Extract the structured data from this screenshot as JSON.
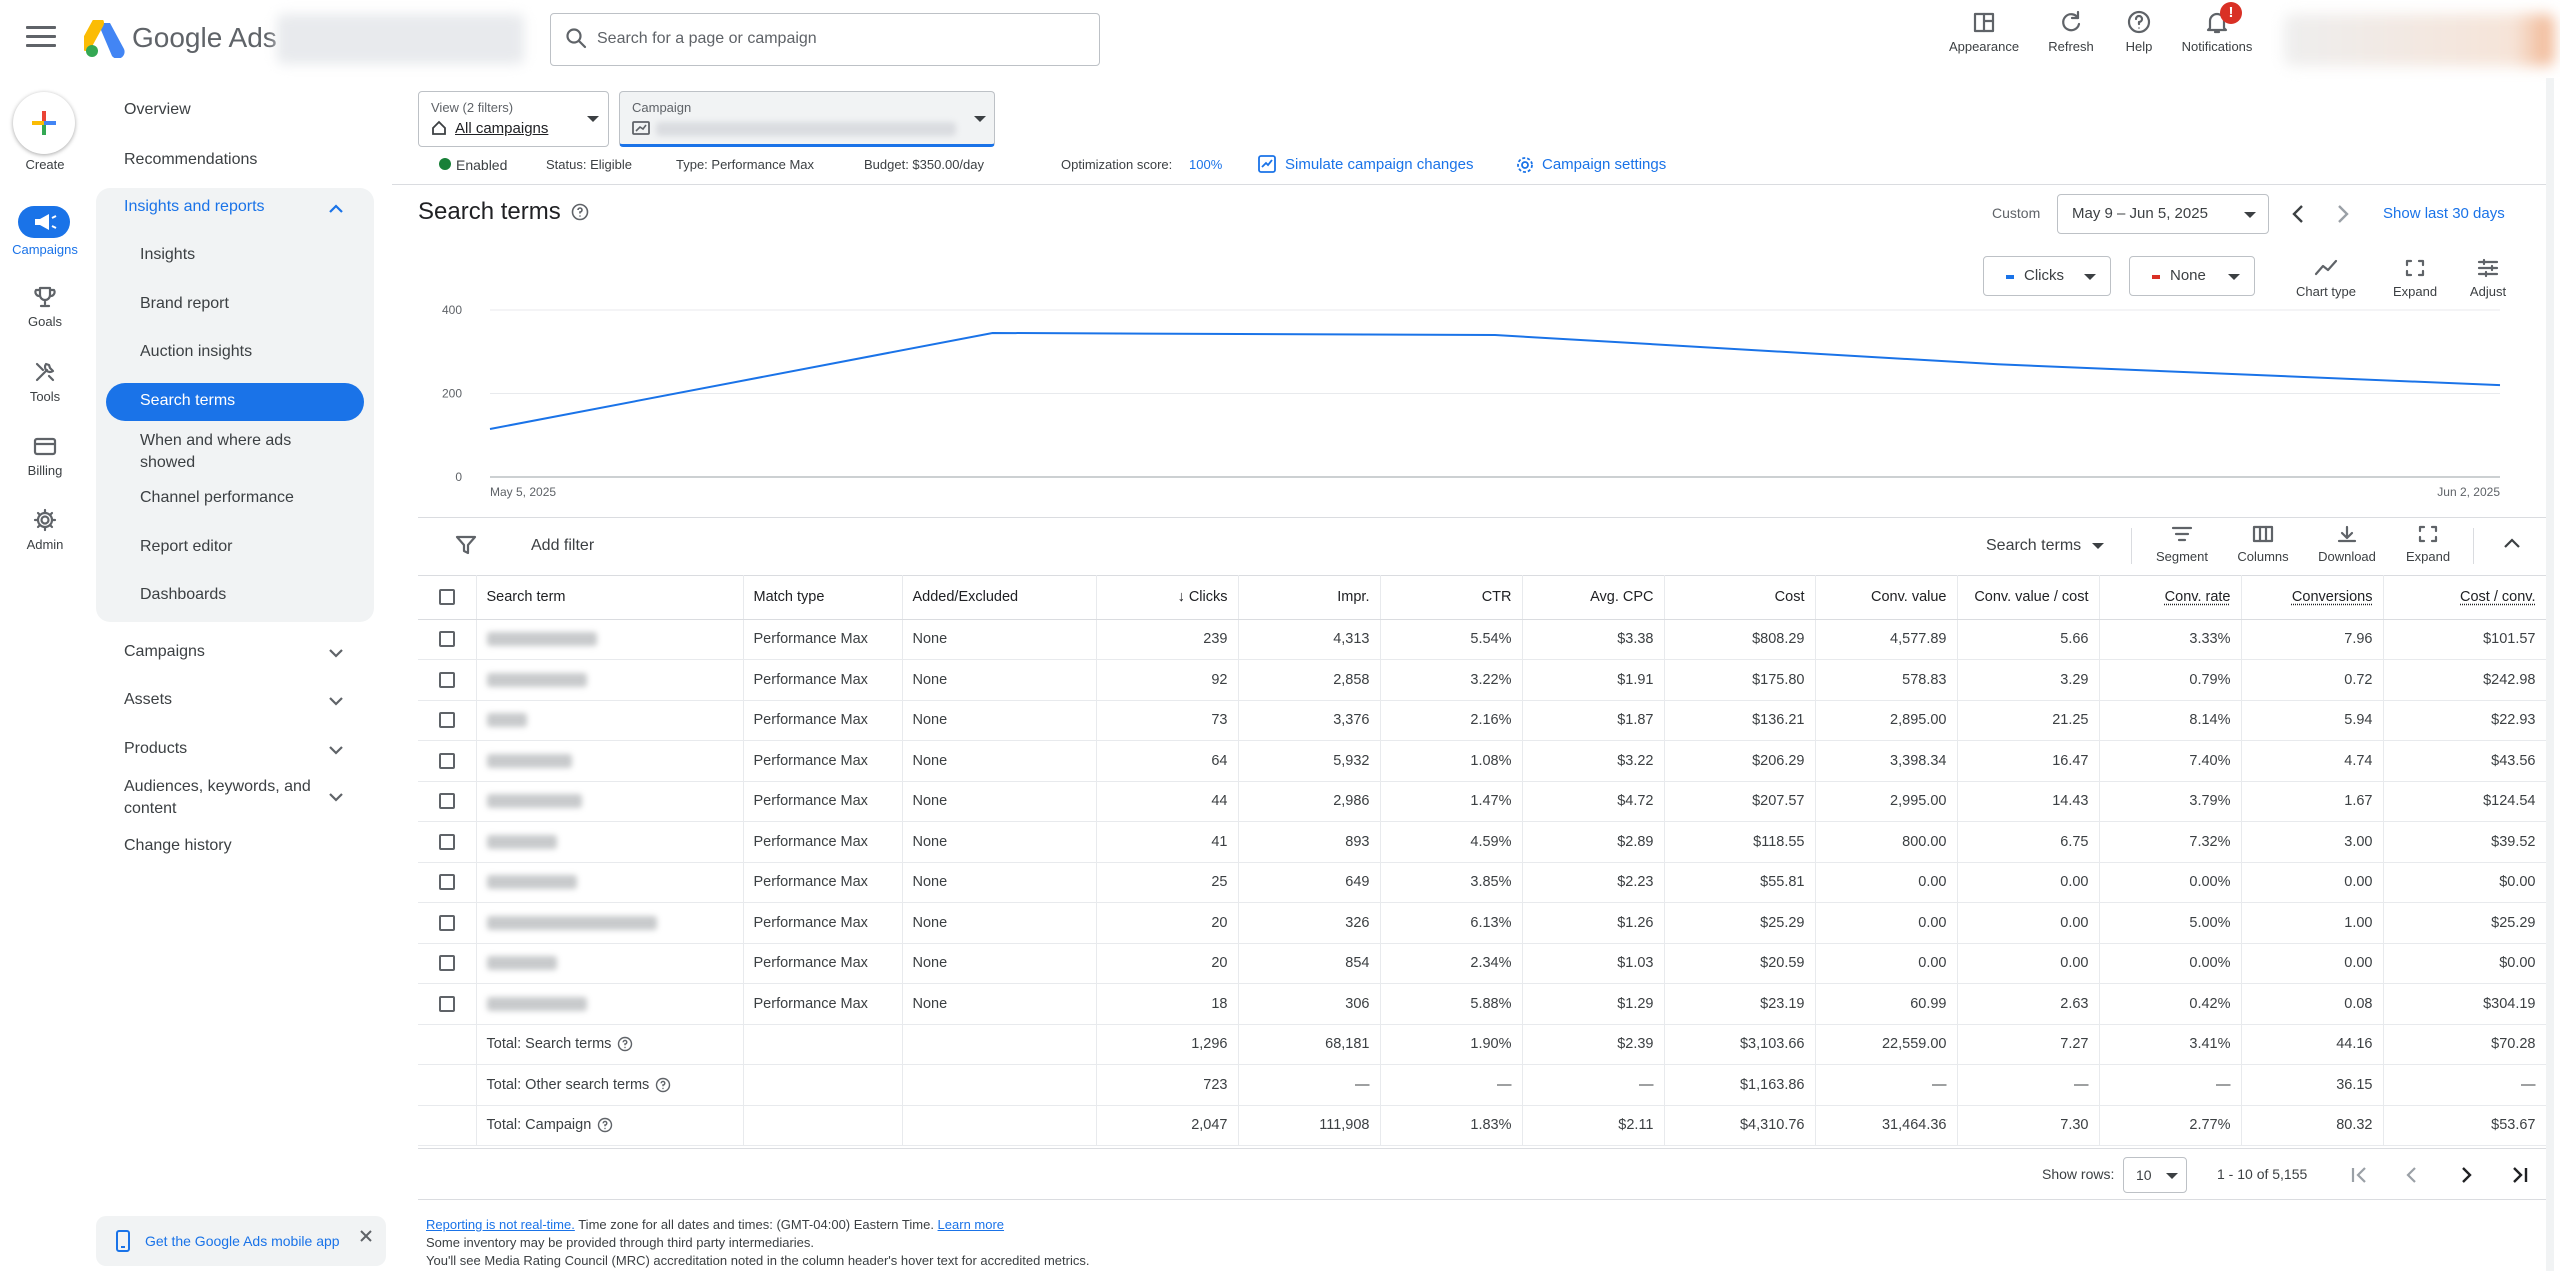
{
  "app": {
    "brand": "Google Ads"
  },
  "search": {
    "placeholder": "Search for a page or campaign"
  },
  "header_buttons": [
    {
      "label": "Appearance",
      "icon": "appearance-icon"
    },
    {
      "label": "Refresh",
      "icon": "refresh-icon"
    },
    {
      "label": "Help",
      "icon": "help-icon"
    },
    {
      "label": "Notifications",
      "icon": "bell-icon",
      "badge": "!"
    }
  ],
  "rail": {
    "create": "Create",
    "items": [
      {
        "label": "Campaigns",
        "icon": "campaigns-icon",
        "active": true
      },
      {
        "label": "Goals",
        "icon": "trophy-icon"
      },
      {
        "label": "Tools",
        "icon": "tools-icon"
      },
      {
        "label": "Billing",
        "icon": "billing-icon"
      },
      {
        "label": "Admin",
        "icon": "gear-icon"
      }
    ]
  },
  "nav": {
    "overview": "Overview",
    "recommendations": "Recommendations",
    "insights_reports": "Insights and reports",
    "sub": [
      "Insights",
      "Brand report",
      "Auction insights",
      "Search terms",
      "When and where ads showed",
      "Channel performance",
      "Report editor",
      "Dashboards"
    ],
    "active_sub": "Search terms",
    "campaigns": "Campaigns",
    "assets": "Assets",
    "products": "Products",
    "audiences": "Audiences, keywords, and content",
    "change_history": "Change history",
    "mobile_app": "Get the Google Ads mobile app"
  },
  "selectors": {
    "view_label": "View (2 filters)",
    "view_value": "All campaigns",
    "campaign_label": "Campaign"
  },
  "status_bar": {
    "enabled": "Enabled",
    "status": "Status: Eligible",
    "type": "Type: Performance Max",
    "budget": "Budget: $350.00/day",
    "opt_label": "Optimization score:",
    "opt_value": "100%",
    "simulate": "Simulate campaign changes",
    "settings": "Campaign settings"
  },
  "page": {
    "title": "Search terms"
  },
  "date": {
    "custom": "Custom",
    "range": "May 9 – Jun 5, 2025",
    "show_last": "Show last 30 days"
  },
  "chart_controls": {
    "metric1": "Clicks",
    "metric1_color": "#1a73e8",
    "metric2": "None",
    "metric2_color": "#d93025",
    "chart_type": "Chart type",
    "expand": "Expand",
    "adjust": "Adjust"
  },
  "chart_data": {
    "type": "line",
    "series": [
      {
        "name": "Clicks",
        "color": "#1a73e8",
        "x": [
          "May 5, 2025",
          "May 12, 2025",
          "May 19, 2025",
          "May 26, 2025",
          "Jun 2, 2025"
        ],
        "values": [
          115,
          345,
          340,
          270,
          220
        ]
      }
    ],
    "ylim": [
      0,
      400
    ],
    "yticks": [
      "0",
      "200",
      "400"
    ],
    "xticks": [
      "May 5, 2025",
      "Jun 2, 2025"
    ]
  },
  "table_toolbar": {
    "add_filter": "Add filter",
    "search_terms": "Search terms",
    "segment": "Segment",
    "columns": "Columns",
    "download": "Download",
    "expand": "Expand"
  },
  "table": {
    "headers": [
      "Search term",
      "Match type",
      "Added/Excluded",
      "Clicks",
      "Impr.",
      "CTR",
      "Avg. CPC",
      "Cost",
      "Conv. value",
      "Conv. value / cost",
      "Conv. rate",
      "Conversions",
      "Cost / conv."
    ],
    "rows": [
      {
        "match": "Performance Max",
        "added": "None",
        "clicks": "239",
        "impr": "4,313",
        "ctr": "5.54%",
        "cpc": "$3.38",
        "cost": "$808.29",
        "cv": "4,577.89",
        "cvc": "5.66",
        "rate": "3.33%",
        "conv": "7.96",
        "cpa": "$101.57"
      },
      {
        "match": "Performance Max",
        "added": "None",
        "clicks": "92",
        "impr": "2,858",
        "ctr": "3.22%",
        "cpc": "$1.91",
        "cost": "$175.80",
        "cv": "578.83",
        "cvc": "3.29",
        "rate": "0.79%",
        "conv": "0.72",
        "cpa": "$242.98"
      },
      {
        "match": "Performance Max",
        "added": "None",
        "clicks": "73",
        "impr": "3,376",
        "ctr": "2.16%",
        "cpc": "$1.87",
        "cost": "$136.21",
        "cv": "2,895.00",
        "cvc": "21.25",
        "rate": "8.14%",
        "conv": "5.94",
        "cpa": "$22.93"
      },
      {
        "match": "Performance Max",
        "added": "None",
        "clicks": "64",
        "impr": "5,932",
        "ctr": "1.08%",
        "cpc": "$3.22",
        "cost": "$206.29",
        "cv": "3,398.34",
        "cvc": "16.47",
        "rate": "7.40%",
        "conv": "4.74",
        "cpa": "$43.56"
      },
      {
        "match": "Performance Max",
        "added": "None",
        "clicks": "44",
        "impr": "2,986",
        "ctr": "1.47%",
        "cpc": "$4.72",
        "cost": "$207.57",
        "cv": "2,995.00",
        "cvc": "14.43",
        "rate": "3.79%",
        "conv": "1.67",
        "cpa": "$124.54"
      },
      {
        "match": "Performance Max",
        "added": "None",
        "clicks": "41",
        "impr": "893",
        "ctr": "4.59%",
        "cpc": "$2.89",
        "cost": "$118.55",
        "cv": "800.00",
        "cvc": "6.75",
        "rate": "7.32%",
        "conv": "3.00",
        "cpa": "$39.52"
      },
      {
        "match": "Performance Max",
        "added": "None",
        "clicks": "25",
        "impr": "649",
        "ctr": "3.85%",
        "cpc": "$2.23",
        "cost": "$55.81",
        "cv": "0.00",
        "cvc": "0.00",
        "rate": "0.00%",
        "conv": "0.00",
        "cpa": "$0.00"
      },
      {
        "match": "Performance Max",
        "added": "None",
        "clicks": "20",
        "impr": "326",
        "ctr": "6.13%",
        "cpc": "$1.26",
        "cost": "$25.29",
        "cv": "0.00",
        "cvc": "0.00",
        "rate": "5.00%",
        "conv": "1.00",
        "cpa": "$25.29"
      },
      {
        "match": "Performance Max",
        "added": "None",
        "clicks": "20",
        "impr": "854",
        "ctr": "2.34%",
        "cpc": "$1.03",
        "cost": "$20.59",
        "cv": "0.00",
        "cvc": "0.00",
        "rate": "0.00%",
        "conv": "0.00",
        "cpa": "$0.00"
      },
      {
        "match": "Performance Max",
        "added": "None",
        "clicks": "18",
        "impr": "306",
        "ctr": "5.88%",
        "cpc": "$1.29",
        "cost": "$23.19",
        "cv": "60.99",
        "cvc": "2.63",
        "rate": "0.42%",
        "conv": "0.08",
        "cpa": "$304.19"
      }
    ],
    "totals": [
      {
        "label": "Total: Search terms",
        "clicks": "1,296",
        "impr": "68,181",
        "ctr": "1.90%",
        "cpc": "$2.39",
        "cost": "$3,103.66",
        "cv": "22,559.00",
        "cvc": "7.27",
        "rate": "3.41%",
        "conv": "44.16",
        "cpa": "$70.28"
      },
      {
        "label": "Total: Other search terms",
        "clicks": "723",
        "impr": "—",
        "ctr": "—",
        "cpc": "—",
        "cost": "$1,163.86",
        "cv": "—",
        "cvc": "—",
        "rate": "—",
        "conv": "36.15",
        "cpa": "—"
      },
      {
        "label": "Total: Campaign",
        "clicks": "2,047",
        "impr": "111,908",
        "ctr": "1.83%",
        "cpc": "$2.11",
        "cost": "$4,310.76",
        "cv": "31,464.36",
        "cvc": "7.30",
        "rate": "2.77%",
        "conv": "80.32",
        "cpa": "$53.67"
      }
    ]
  },
  "pager": {
    "show_rows": "Show rows:",
    "rows_value": "10",
    "range": "1 - 10 of 5,155"
  },
  "footer": {
    "not_realtime": "Reporting is not real-time.",
    "timezone": " Time zone for all dates and times: (GMT-04:00) Eastern Time. ",
    "learn_more": "Learn more",
    "line2": "Some inventory may be provided through third party intermediaries.",
    "line3": "You'll see Media Rating Council (MRC) accreditation noted in the column header's hover text for accredited metrics."
  }
}
